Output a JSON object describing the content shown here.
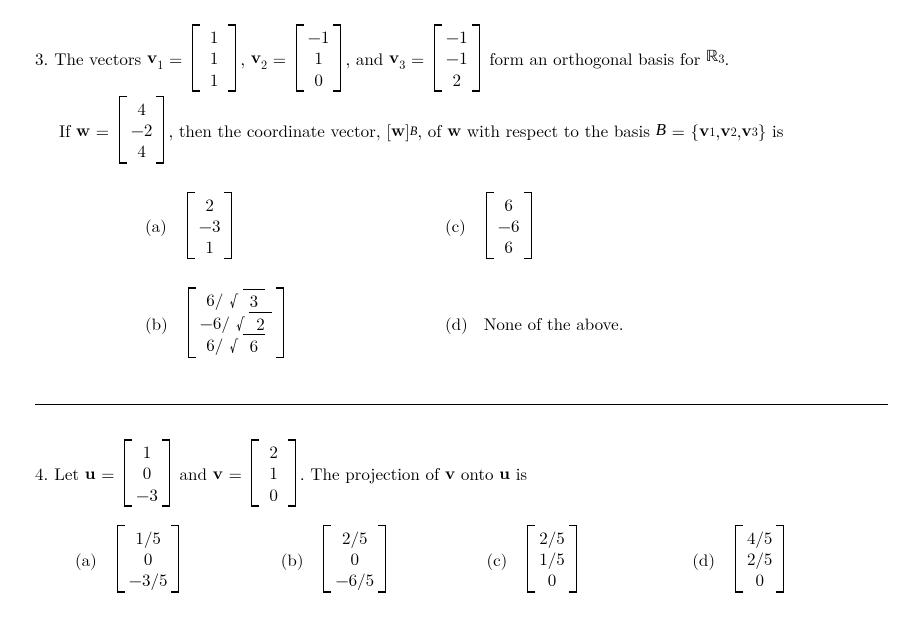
{
  "q3": {
    "number": "3.",
    "text1": "The vectors ",
    "v1label": "v",
    "v1sub": "1",
    "eq": " = ",
    "v1": [
      "1",
      "1",
      "1"
    ],
    "comma": ", ",
    "v2label": "v",
    "v2sub": "2",
    "v2": [
      "−1",
      "1",
      "0"
    ],
    "and": ", and ",
    "v3label": "v",
    "v3sub": "3",
    "v3": [
      "−1",
      "−1",
      "2"
    ],
    "text2": " form an orthogonal basis for ",
    "R": "ℝ",
    "Rpow": "3",
    "period": ".",
    "line2a": "If ",
    "wlabel": "w",
    "w": [
      "4",
      "−2",
      "4"
    ],
    "line2b": ", then the coordinate vector, [",
    "wB": "w",
    "closeb": "]",
    "Bsub": "B",
    "line2c": ", of ",
    "line2d": " with respect to the basis ",
    "Bcal": "B",
    "seteq": " = {",
    "setv1": "v",
    "set1": "1",
    "setcomma": ", ",
    "setv2": "v",
    "set2": "2",
    "setv3": "v",
    "set3": "3",
    "setend": "} is",
    "answers": {
      "a": {
        "lab": "(a)",
        "vec": [
          "2",
          "−3",
          "1"
        ]
      },
      "c": {
        "lab": "(c)",
        "vec": [
          "6",
          "−6",
          "6"
        ]
      },
      "b": {
        "lab": "(b)",
        "vec": [
          "6/√3",
          "−6/√2",
          "6/√6"
        ]
      },
      "d": {
        "lab": "(d)",
        "text": "None of the above."
      }
    }
  },
  "q4": {
    "number": "4.",
    "text1": "Let ",
    "ulabel": "u",
    "u": [
      "1",
      "0",
      "−3"
    ],
    "and": " and ",
    "vlabel": "v",
    "v": [
      "2",
      "1",
      "0"
    ],
    "text2": ". The projection of ",
    "onto": " onto ",
    "is": " is",
    "answers": {
      "a": {
        "lab": "(a)",
        "vec": [
          "1/5",
          "0",
          "−3/5"
        ]
      },
      "b": {
        "lab": "(b)",
        "vec": [
          "2/5",
          "0",
          "−6/5"
        ]
      },
      "c": {
        "lab": "(c)",
        "vec": [
          "2/5",
          "1/5",
          "0"
        ]
      },
      "d": {
        "lab": "(d)",
        "vec": [
          "4/5",
          "2/5",
          "0"
        ]
      }
    }
  }
}
